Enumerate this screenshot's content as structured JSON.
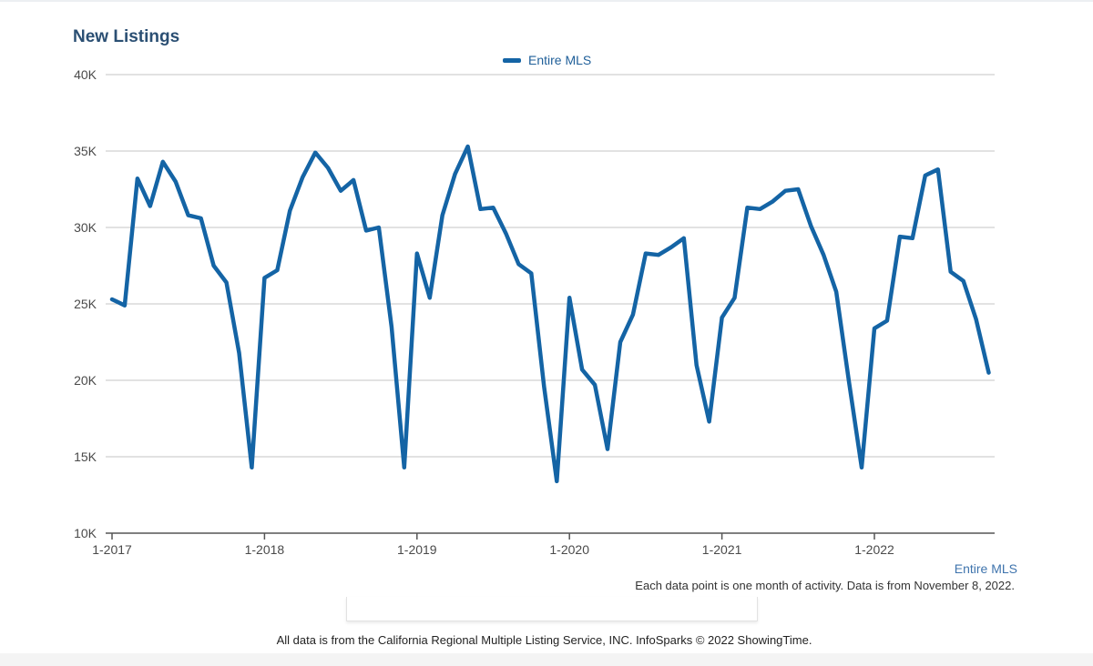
{
  "chart_data": {
    "type": "line",
    "title": "New Listings",
    "ylim": [
      10000,
      40000
    ],
    "y_ticks": [
      10000,
      15000,
      20000,
      25000,
      30000,
      35000,
      40000
    ],
    "y_tick_labels": [
      "10K",
      "15K",
      "20K",
      "25K",
      "30K",
      "35K",
      "40K"
    ],
    "x_ticks": [
      "2017-01",
      "2018-01",
      "2019-01",
      "2020-01",
      "2021-01",
      "2022-01"
    ],
    "x_tick_labels": [
      "1-2017",
      "1-2018",
      "1-2019",
      "1-2020",
      "1-2021",
      "1-2022"
    ],
    "grid": true,
    "legend_position": "top-center",
    "x": [
      "2017-01",
      "2017-02",
      "2017-03",
      "2017-04",
      "2017-05",
      "2017-06",
      "2017-07",
      "2017-08",
      "2017-09",
      "2017-10",
      "2017-11",
      "2017-12",
      "2018-01",
      "2018-02",
      "2018-03",
      "2018-04",
      "2018-05",
      "2018-06",
      "2018-07",
      "2018-08",
      "2018-09",
      "2018-10",
      "2018-11",
      "2018-12",
      "2019-01",
      "2019-02",
      "2019-03",
      "2019-04",
      "2019-05",
      "2019-06",
      "2019-07",
      "2019-08",
      "2019-09",
      "2019-10",
      "2019-11",
      "2019-12",
      "2020-01",
      "2020-02",
      "2020-03",
      "2020-04",
      "2020-05",
      "2020-06",
      "2020-07",
      "2020-08",
      "2020-09",
      "2020-10",
      "2020-11",
      "2020-12",
      "2021-01",
      "2021-02",
      "2021-03",
      "2021-04",
      "2021-05",
      "2021-06",
      "2021-07",
      "2021-08",
      "2021-09",
      "2021-10",
      "2021-11",
      "2021-12",
      "2022-01",
      "2022-02",
      "2022-03",
      "2022-04",
      "2022-05",
      "2022-06",
      "2022-07",
      "2022-08",
      "2022-09",
      "2022-10"
    ],
    "series": [
      {
        "name": "Entire MLS",
        "color": "#1464a5",
        "values": [
          25300,
          24900,
          33200,
          31400,
          34300,
          33000,
          30800,
          30600,
          27500,
          26400,
          21800,
          14300,
          26700,
          27200,
          31100,
          33300,
          34900,
          33900,
          32400,
          33100,
          29800,
          30000,
          23500,
          14300,
          28300,
          25400,
          30800,
          33500,
          35300,
          31200,
          31300,
          29600,
          27600,
          27000,
          19600,
          13400,
          25400,
          20700,
          19700,
          15500,
          22500,
          24300,
          28300,
          28200,
          28700,
          29300,
          21000,
          17300,
          24100,
          25400,
          31300,
          31200,
          31700,
          32400,
          32500,
          30100,
          28200,
          25800,
          19900,
          14300,
          23400,
          23900,
          29400,
          29300,
          33400,
          33800,
          27100,
          26500,
          24000,
          20500
        ]
      }
    ]
  },
  "series_tag": "Entire MLS",
  "note": "Each data point is one month of activity. Data is from November 8, 2022.",
  "footer": "All data is from the California Regional Multiple Listing Service, INC. InfoSparks © 2022 ShowingTime."
}
